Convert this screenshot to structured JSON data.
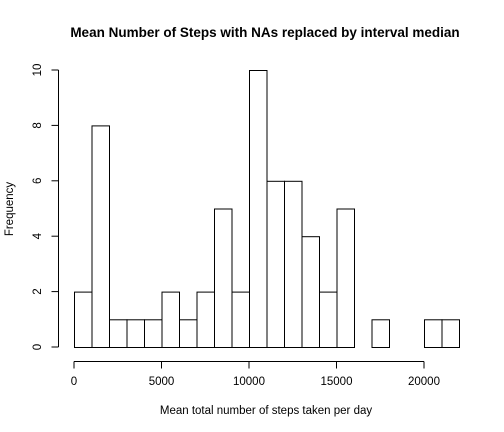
{
  "chart_data": {
    "type": "bar",
    "title": "Mean Number of Steps with NAs replaced by interval median",
    "xlabel": "Mean total number of steps taken per day",
    "ylabel": "Frequency",
    "bin_width": 1000,
    "bin_starts": [
      0,
      1000,
      2000,
      3000,
      4000,
      5000,
      6000,
      7000,
      8000,
      9000,
      10000,
      11000,
      12000,
      13000,
      14000,
      15000,
      16000,
      17000,
      18000,
      19000,
      20000,
      21000
    ],
    "values": [
      2,
      8,
      1,
      1,
      1,
      2,
      1,
      2,
      5,
      2,
      10,
      6,
      6,
      4,
      2,
      5,
      0,
      1,
      0,
      0,
      1,
      1
    ],
    "xlim": [
      0,
      22000
    ],
    "ylim": [
      0,
      10
    ],
    "x_ticks": [
      0,
      5000,
      10000,
      15000,
      20000
    ],
    "x_tick_labels": [
      "0",
      "5000",
      "10000",
      "15000",
      "20000"
    ],
    "y_ticks": [
      0,
      2,
      4,
      6,
      8,
      10
    ],
    "y_tick_labels": [
      "0",
      "2",
      "4",
      "6",
      "8",
      "10"
    ],
    "grid": false,
    "legend": "none"
  }
}
